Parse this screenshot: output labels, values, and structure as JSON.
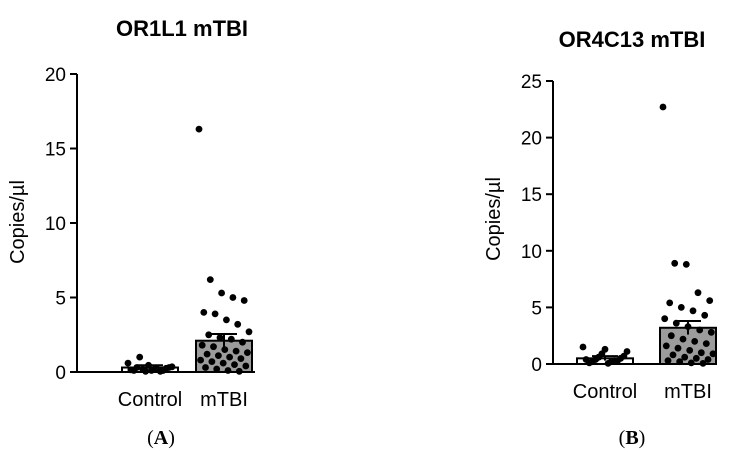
{
  "chart_data": [
    {
      "panel_label": "A",
      "type": "bar",
      "title": "OR1L1 mTBI",
      "xlabel": "",
      "ylabel": "Copies/µl",
      "ylim": [
        0,
        20
      ],
      "yticks": [
        0,
        5,
        10,
        15,
        20
      ],
      "categories": [
        "Control",
        "mTBI"
      ],
      "values": [
        0.3,
        2.1
      ],
      "sem": [
        0.15,
        0.45
      ],
      "grid": false,
      "legend": "none",
      "points": [
        [
          0.6,
          0.45,
          0.3,
          0.2,
          0.1,
          0.3,
          0.2,
          0.15,
          0.1,
          0.35,
          0.05,
          0.25,
          1.0,
          0.05,
          0.1,
          0.2
        ],
        [
          16.3,
          6.2,
          5.3,
          5.0,
          4.8,
          4.0,
          3.9,
          3.5,
          3.2,
          2.7,
          2.5,
          2.3,
          2.2,
          2.0,
          1.8,
          1.7,
          1.5,
          1.4,
          1.3,
          1.2,
          1.1,
          1.0,
          0.9,
          0.8,
          0.7,
          0.6,
          0.5,
          0.4,
          0.3,
          0.2,
          0.1,
          0.05
        ]
      ]
    },
    {
      "panel_label": "B",
      "type": "bar",
      "title": "OR4C13 mTBI",
      "xlabel": "",
      "ylabel": "Copies/µl",
      "ylim": [
        0,
        25
      ],
      "yticks": [
        0,
        5,
        10,
        15,
        20,
        25
      ],
      "categories": [
        "Control",
        "mTBI"
      ],
      "values": [
        0.5,
        3.2
      ],
      "sem": [
        0.2,
        0.6
      ],
      "grid": false,
      "legend": "none",
      "points": [
        [
          1.5,
          1.3,
          1.1,
          0.9,
          0.7,
          0.6,
          0.5,
          0.4,
          0.3,
          0.2,
          0.3,
          0.1,
          0.2,
          0.4,
          0.05
        ],
        [
          22.7,
          8.9,
          8.8,
          6.3,
          5.6,
          5.4,
          5.0,
          4.7,
          4.3,
          4.0,
          3.6,
          3.3,
          3.0,
          2.8,
          2.5,
          2.2,
          2.0,
          1.8,
          1.6,
          1.4,
          1.2,
          1.0,
          0.9,
          0.8,
          0.6,
          0.5,
          0.4,
          0.3,
          0.2,
          0.1,
          0.05
        ]
      ]
    }
  ]
}
